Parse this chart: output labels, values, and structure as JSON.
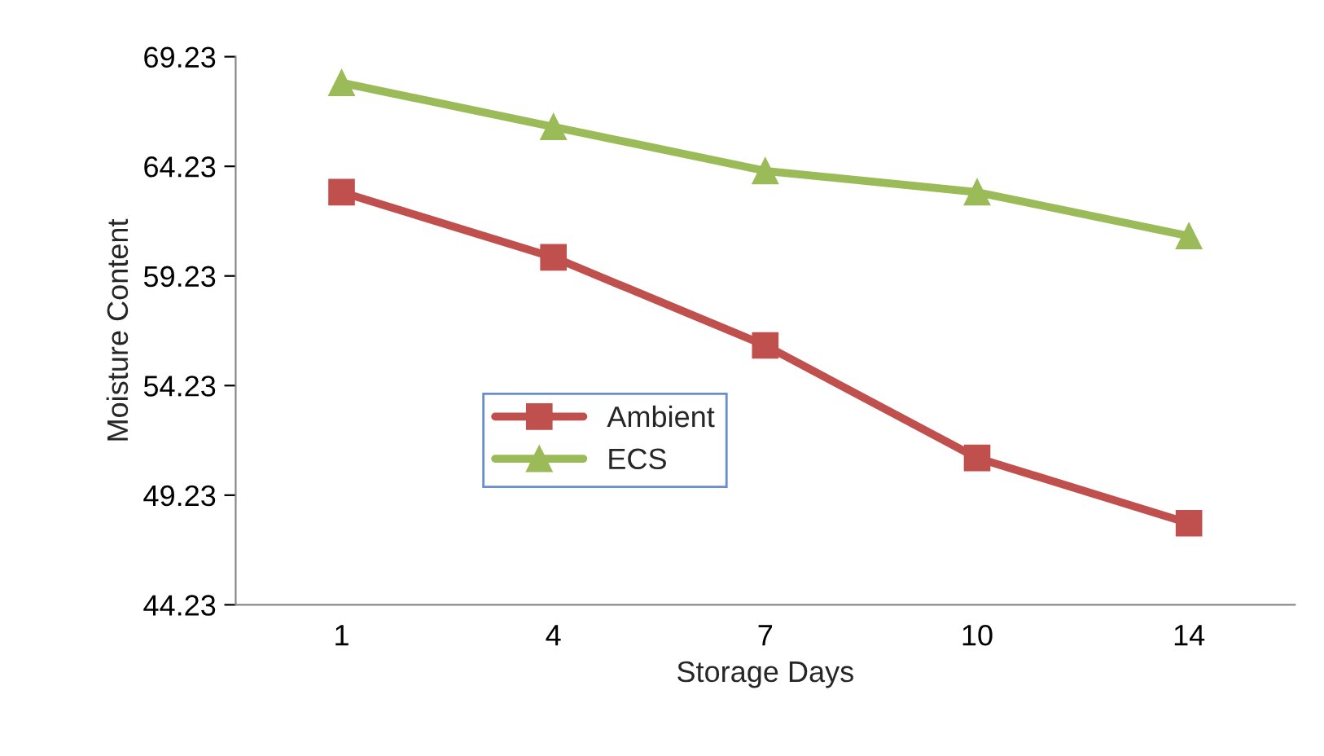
{
  "chart_data": {
    "type": "line",
    "xlabel": "Storage Days",
    "ylabel": "Moisture Content",
    "categories": [
      "1",
      "4",
      "7",
      "10",
      "14"
    ],
    "series": [
      {
        "name": "Ambient",
        "color": "#c0504d",
        "marker": "square",
        "values": [
          63.05,
          60.08,
          56.06,
          50.93,
          47.95
        ]
      },
      {
        "name": "ECS",
        "color": "#9bbb59",
        "marker": "triangle",
        "values": [
          68.04,
          66.03,
          64.02,
          63.05,
          61.05
        ]
      }
    ],
    "ylim": [
      44.23,
      69.23
    ],
    "yticks": [
      44.23,
      49.23,
      54.23,
      59.23,
      64.23,
      69.23
    ],
    "grid": false,
    "legend": "center left",
    "line_style": "solid"
  }
}
